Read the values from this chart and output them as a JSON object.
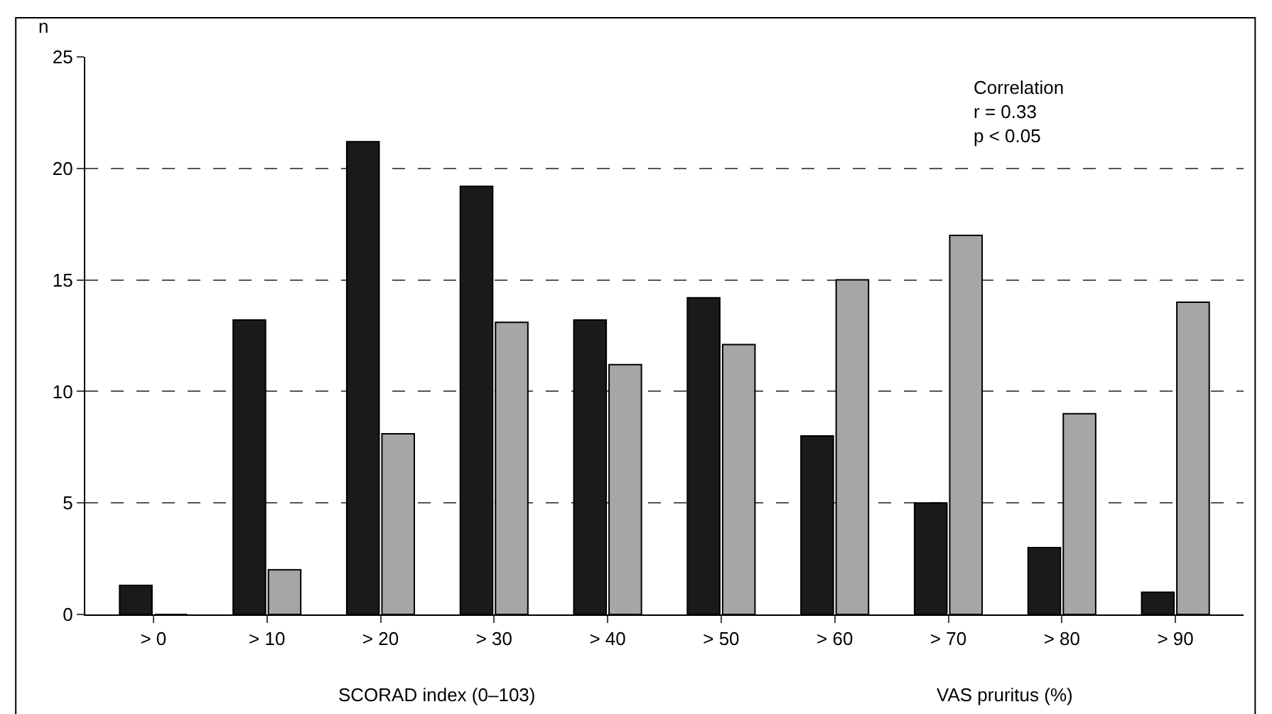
{
  "chart_data": {
    "type": "bar",
    "ylabel": "n",
    "categories": [
      "> 0",
      "> 10",
      "> 20",
      "> 30",
      "> 40",
      "> 50",
      "> 60",
      "> 70",
      "> 80",
      "> 90"
    ],
    "series": [
      {
        "color": "#1a1a1a",
        "values": [
          1.3,
          13.2,
          21.2,
          19.2,
          13.2,
          14.2,
          8,
          5,
          3,
          1
        ]
      },
      {
        "color": "#a6a6a6",
        "values": [
          0,
          2,
          8.1,
          13.1,
          11.2,
          12.1,
          15,
          17,
          9,
          14
        ]
      }
    ],
    "ylim": [
      0,
      25
    ],
    "yticks": [
      0,
      5,
      10,
      15,
      20,
      25
    ],
    "grid": "y",
    "legend": false,
    "annotations": [
      "Correlation\nr = 0.33\np < 0.05",
      "SCORAD index (0–103)",
      "VAS pruritus (%)"
    ]
  }
}
